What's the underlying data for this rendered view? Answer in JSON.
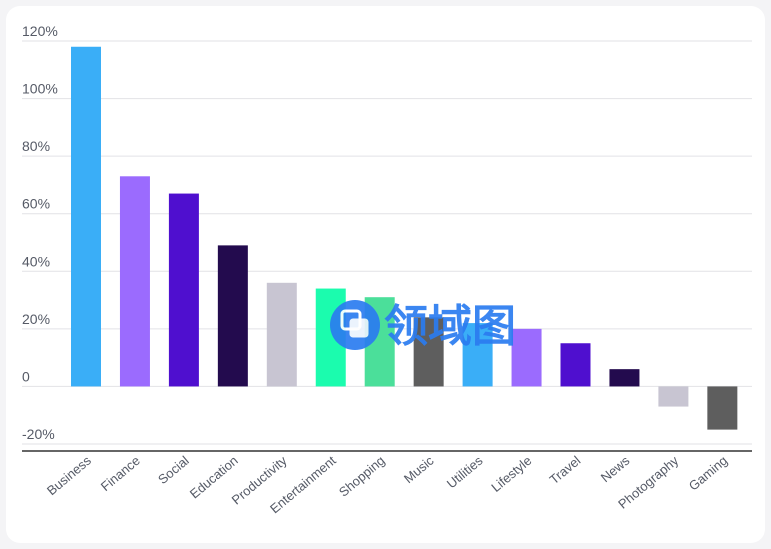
{
  "chart_data": {
    "type": "bar",
    "title": "",
    "xlabel": "",
    "ylabel": "",
    "categories": [
      "Business",
      "Finance",
      "Social",
      "Education",
      "Productivity",
      "Entertainment",
      "Shopping",
      "Music",
      "Utilities",
      "Lifestyle",
      "Travel",
      "News",
      "Photography",
      "Gaming"
    ],
    "values": [
      118,
      73,
      67,
      49,
      36,
      34,
      31,
      24,
      22,
      20,
      15,
      6,
      -7,
      -15
    ],
    "colors": [
      "#3aaef7",
      "#9b6bfe",
      "#4f0fcf",
      "#230b4e",
      "#c8c5d2",
      "#1bfcae",
      "#4bdf9a",
      "#5e5e5e",
      "#3aaef7",
      "#9b6bfe",
      "#4f0fcf",
      "#230b4e",
      "#c8c5d2",
      "#5e5e5e"
    ],
    "ylim": [
      -20,
      120
    ],
    "yticks": [
      -20,
      0,
      20,
      40,
      60,
      80,
      100,
      120
    ],
    "ytick_labels": [
      "-20%",
      "0",
      "20%",
      "40%",
      "60%",
      "80%",
      "100%",
      "120%"
    ],
    "grid": true,
    "legend": "none"
  },
  "watermark": {
    "text": "领域图",
    "color": "#2b7cf0"
  }
}
